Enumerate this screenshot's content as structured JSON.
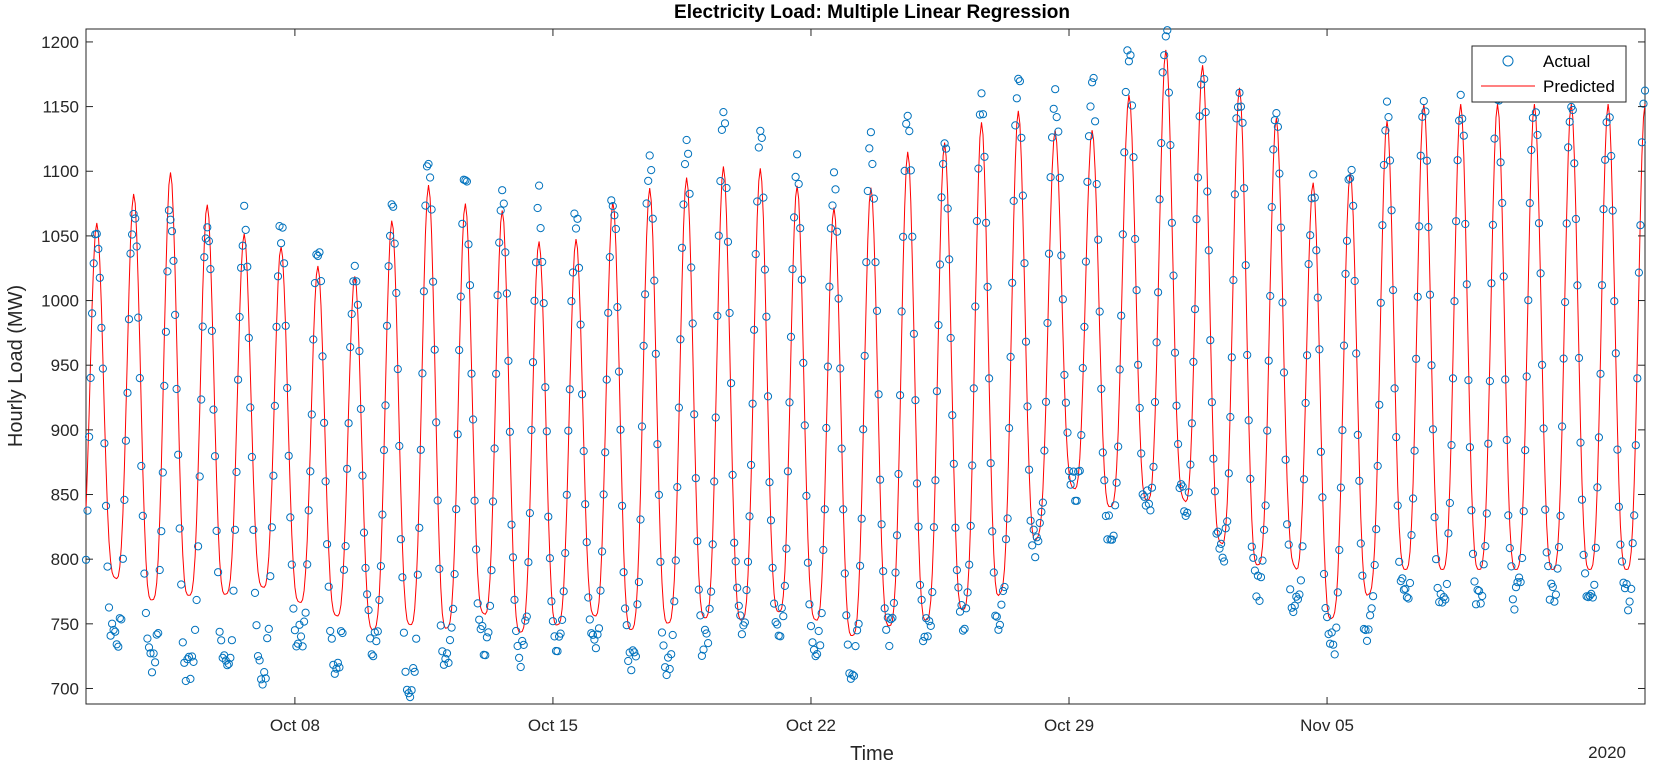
{
  "chart_data": {
    "type": "line",
    "title": "Electricity Load: Multiple Linear Regression",
    "xlabel": "Time",
    "ylabel": "Hourly Load (MW)",
    "x_year_label": "2020",
    "xlim": [
      "2020-10-02T08:00",
      "2020-11-13T15:00"
    ],
    "ylim": [
      688,
      1210
    ],
    "yticks": [
      700,
      750,
      800,
      850,
      900,
      950,
      1000,
      1050,
      1100,
      1150,
      1200
    ],
    "xticks": [
      {
        "date": "2020-10-08",
        "label": "Oct 08"
      },
      {
        "date": "2020-10-15",
        "label": "Oct 15"
      },
      {
        "date": "2020-10-22",
        "label": "Oct 22"
      },
      {
        "date": "2020-10-29",
        "label": "Oct 29"
      },
      {
        "date": "2020-11-05",
        "label": "Nov 05"
      }
    ],
    "legend": {
      "position": "top-right",
      "entries": [
        "Actual",
        "Predicted"
      ]
    },
    "grid": false,
    "colors": {
      "actual": "#0072BD",
      "predicted": "#FF0000"
    },
    "sampling": "hourly",
    "series": [
      {
        "name": "Actual",
        "style": "markers",
        "marker": "circle",
        "daily_peaks": [
          1060,
          1080,
          1062,
          1058,
          1065,
          1050,
          1035,
          1020,
          1108,
          1110,
          1085,
          1087,
          1072,
          1060,
          1093,
          1118,
          1135,
          1142,
          1116,
          1098,
          1084,
          1150,
          1128,
          1118,
          1177,
          1168,
          1160,
          1175,
          1205,
          1210,
          1172,
          1170,
          1130,
          1072,
          1115,
          1160
        ],
        "daily_troughs": [
          738,
          720,
          712,
          720,
          708,
          740,
          720,
          740,
          702,
          725,
          738,
          725,
          735,
          745,
          724,
          716,
          732,
          752,
          750,
          738,
          712,
          745,
          742,
          755,
          750,
          805,
          862,
          820,
          842,
          850,
          810,
          780,
          768,
          732,
          742,
          772
        ]
      },
      {
        "name": "Predicted",
        "style": "line",
        "daily_peaks": [
          1060,
          1096,
          1101,
          1058,
          1048,
          1038,
          1020,
          1018,
          1088,
          1090,
          1066,
          1072,
          1030,
          1058,
          1087,
          1087,
          1100,
          1106,
          1100,
          1082,
          1066,
          1100,
          1124,
          1121,
          1148,
          1146,
          1123,
          1137,
          1172,
          1207,
          1167,
          1163,
          1128,
          1069,
          1117,
          1152
        ],
        "daily_troughs": [
          788,
          768,
          772,
          772,
          780,
          768,
          758,
          745,
          750,
          745,
          760,
          743,
          748,
          758,
          745,
          750,
          755,
          752,
          760,
          755,
          740,
          748,
          752,
          760,
          768,
          810,
          857,
          840,
          845,
          850,
          815,
          795,
          800,
          752,
          770,
          792
        ]
      }
    ]
  }
}
